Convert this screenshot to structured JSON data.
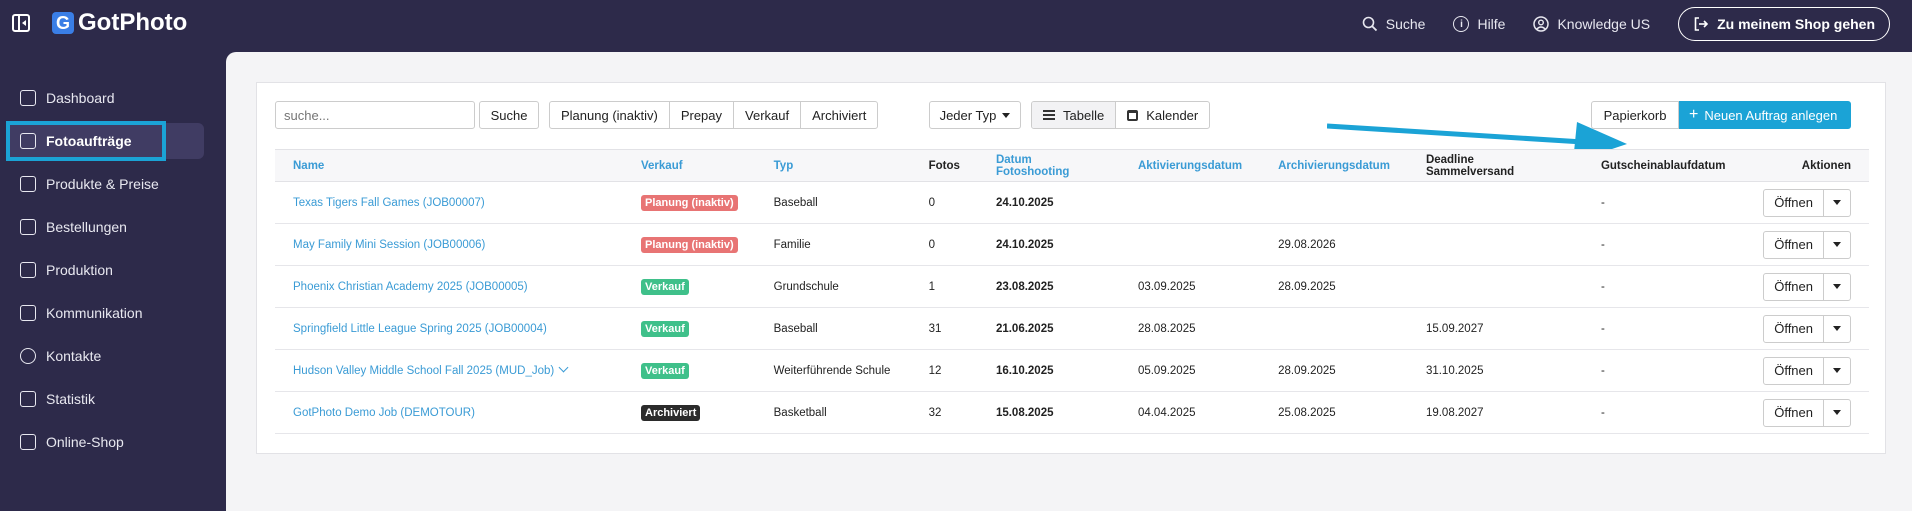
{
  "brand": {
    "name": "GotPhoto",
    "mark": "G"
  },
  "topbar": {
    "search_label": "Suche",
    "help_label": "Hilfe",
    "account_label": "Knowledge US",
    "shop_button": "Zu meinem Shop gehen"
  },
  "sidebar": {
    "items": [
      {
        "label": "Dashboard",
        "icon": "home-icon"
      },
      {
        "label": "Fotoaufträge",
        "icon": "image-icon",
        "active": true
      },
      {
        "label": "Produkte & Preise",
        "icon": "cart-icon"
      },
      {
        "label": "Bestellungen",
        "icon": "box-icon"
      },
      {
        "label": "Produktion",
        "icon": "printer-icon"
      },
      {
        "label": "Kommunikation",
        "icon": "message-icon"
      },
      {
        "label": "Kontakte",
        "icon": "person-icon"
      },
      {
        "label": "Statistik",
        "icon": "chart-icon"
      },
      {
        "label": "Online-Shop",
        "icon": "store-icon"
      }
    ]
  },
  "toolbar": {
    "search_placeholder": "suche...",
    "search_button": "Suche",
    "filters": [
      "Planung (inaktiv)",
      "Prepay",
      "Verkauf",
      "Archiviert"
    ],
    "type_select": "Jeder Typ",
    "view_table": "Tabelle",
    "view_calendar": "Kalender",
    "trash_button": "Papierkorb",
    "new_button": "Neuen Auftrag anlegen"
  },
  "table": {
    "headers": [
      "Name",
      "Verkauf",
      "Typ",
      "Fotos",
      "Datum Fotoshooting",
      "Aktivierungsdatum",
      "Archivierungsdatum",
      "Deadline Sammelversand",
      "Gutscheinablaufdatum",
      "Aktionen"
    ],
    "open_label": "Öffnen",
    "rows": [
      {
        "name": "Texas Tigers Fall Games (JOB00007)",
        "status": "Planung (inaktiv)",
        "status_color": "#e87474",
        "type": "Baseball",
        "photos": "0",
        "shoot": "24.10.2025",
        "activation": "",
        "archive": "",
        "deadline": "",
        "voucher": "-"
      },
      {
        "name": "May Family Mini Session (JOB00006)",
        "status": "Planung (inaktiv)",
        "status_color": "#e87474",
        "type": "Familie",
        "photos": "0",
        "shoot": "24.10.2025",
        "activation": "",
        "archive": "29.08.2026",
        "deadline": "",
        "voucher": "-"
      },
      {
        "name": "Phoenix Christian Academy 2025 (JOB00005)",
        "status": "Verkauf",
        "status_color": "#3fc08a",
        "type": "Grundschule",
        "photos": "1",
        "shoot": "23.08.2025",
        "activation": "03.09.2025",
        "archive": "28.09.2025",
        "deadline": "",
        "voucher": "-"
      },
      {
        "name": "Springfield Little League Spring 2025 (JOB00004)",
        "status": "Verkauf",
        "status_color": "#3fc08a",
        "type": "Baseball",
        "photos": "31",
        "shoot": "21.06.2025",
        "activation": "28.08.2025",
        "archive": "",
        "deadline": "15.09.2027",
        "voucher": "-"
      },
      {
        "name": "Hudson Valley Middle School Fall 2025 (MUD_Job)",
        "status": "Verkauf",
        "status_color": "#3fc08a",
        "type": "Weiterführende Schule",
        "photos": "12",
        "shoot": "16.10.2025",
        "activation": "05.09.2025",
        "archive": "28.09.2025",
        "deadline": "31.10.2025",
        "voucher": "-",
        "has_chevron": true
      },
      {
        "name": "GotPhoto Demo Job (DEMOTOUR)",
        "status": "Archiviert",
        "status_color": "#2b2b2b",
        "type": "Basketball",
        "photos": "32",
        "shoot": "15.08.2025",
        "activation": "04.04.2025",
        "archive": "25.08.2025",
        "deadline": "19.08.2027",
        "voucher": "-"
      }
    ]
  },
  "colors": {
    "accent": "#1ba3d6",
    "nav_bg": "#2d2a4a",
    "link": "#3a9bd5"
  }
}
